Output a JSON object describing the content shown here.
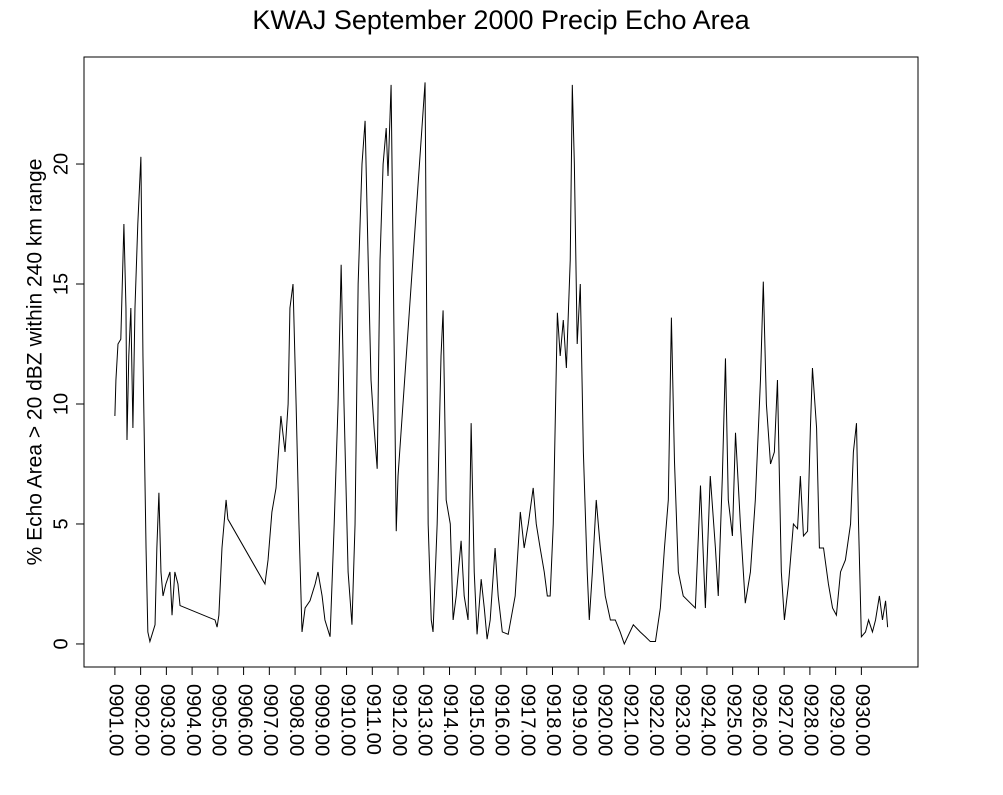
{
  "chart_data": {
    "type": "line",
    "title": "KWAJ September 2000 Precip Echo Area",
    "y_label": "% Echo Area > 20 dBZ within 240 km range",
    "xlim": [
      -0.2,
      32.2
    ],
    "ylim": [
      -0.96,
      24.46
    ],
    "yticks": [
      0,
      5,
      10,
      15,
      20
    ],
    "xticks": [
      {
        "value": 1,
        "label": "0901.00"
      },
      {
        "value": 2,
        "label": "0902.00"
      },
      {
        "value": 3,
        "label": "0903.00"
      },
      {
        "value": 4,
        "label": "0904.00"
      },
      {
        "value": 5,
        "label": "0905.00"
      },
      {
        "value": 6,
        "label": "0906.00"
      },
      {
        "value": 7,
        "label": "0907.00"
      },
      {
        "value": 8,
        "label": "0908.00"
      },
      {
        "value": 9,
        "label": "0909.00"
      },
      {
        "value": 10,
        "label": "0910.00"
      },
      {
        "value": 11,
        "label": "0911.00"
      },
      {
        "value": 12,
        "label": "0912.00"
      },
      {
        "value": 13,
        "label": "0913.00"
      },
      {
        "value": 14,
        "label": "0914.00"
      },
      {
        "value": 15,
        "label": "0915.00"
      },
      {
        "value": 16,
        "label": "0916.00"
      },
      {
        "value": 17,
        "label": "0917.00"
      },
      {
        "value": 18,
        "label": "0918.00"
      },
      {
        "value": 19,
        "label": "0919.00"
      },
      {
        "value": 20,
        "label": "0920.00"
      },
      {
        "value": 21,
        "label": "0921.00"
      },
      {
        "value": 22,
        "label": "0922.00"
      },
      {
        "value": 23,
        "label": "0923.00"
      },
      {
        "value": 24,
        "label": "0924.00"
      },
      {
        "value": 25,
        "label": "0925.00"
      },
      {
        "value": 26,
        "label": "0926.00"
      },
      {
        "value": 27,
        "label": "0927.00"
      },
      {
        "value": 28,
        "label": "0928.00"
      },
      {
        "value": 29,
        "label": "0929.00"
      },
      {
        "value": 30,
        "label": "0930.00"
      }
    ],
    "x": [
      1.0,
      1.04,
      1.12,
      1.23,
      1.35,
      1.43,
      1.47,
      1.54,
      1.62,
      1.7,
      1.78,
      1.89,
      2.01,
      2.09,
      2.21,
      2.28,
      2.36,
      2.56,
      2.63,
      2.71,
      2.79,
      2.87,
      2.98,
      3.14,
      3.22,
      3.33,
      3.45,
      3.53,
      4.89,
      4.97,
      5.04,
      5.16,
      5.32,
      5.39,
      6.83,
      6.95,
      7.1,
      7.26,
      7.45,
      7.61,
      7.73,
      7.8,
      7.92,
      8.04,
      8.15,
      8.27,
      8.39,
      8.58,
      8.78,
      8.89,
      9.05,
      9.16,
      9.36,
      9.52,
      9.67,
      9.79,
      9.9,
      10.06,
      10.21,
      10.33,
      10.45,
      10.6,
      10.72,
      10.84,
      10.95,
      11.07,
      11.19,
      11.3,
      11.42,
      11.54,
      11.61,
      11.73,
      11.81,
      11.93,
      12.0,
      13.05,
      13.17,
      13.29,
      13.36,
      13.52,
      13.67,
      13.75,
      13.87,
      14.03,
      14.14,
      14.26,
      14.45,
      14.57,
      14.72,
      14.84,
      14.96,
      15.07,
      15.23,
      15.35,
      15.46,
      15.58,
      15.77,
      15.89,
      16.05,
      16.28,
      16.55,
      16.75,
      16.9,
      17.06,
      17.25,
      17.37,
      17.52,
      17.68,
      17.8,
      17.91,
      18.03,
      18.19,
      18.3,
      18.42,
      18.54,
      18.69,
      18.77,
      18.85,
      18.96,
      19.08,
      19.2,
      19.35,
      19.43,
      19.55,
      19.7,
      19.86,
      20.05,
      20.25,
      20.44,
      20.63,
      20.79,
      21.14,
      21.41,
      21.61,
      21.8,
      22.0,
      22.19,
      22.35,
      22.5,
      22.62,
      22.74,
      22.89,
      23.08,
      23.36,
      23.55,
      23.75,
      23.94,
      24.13,
      24.33,
      24.44,
      24.6,
      24.72,
      24.83,
      24.99,
      25.11,
      25.3,
      25.49,
      25.69,
      25.88,
      26.08,
      26.19,
      26.31,
      26.47,
      26.62,
      26.74,
      26.89,
      27.01,
      27.17,
      27.36,
      27.52,
      27.63,
      27.75,
      27.91,
      28.02,
      28.1,
      28.26,
      28.37,
      28.53,
      28.72,
      28.88,
      29.03,
      29.19,
      29.38,
      29.58,
      29.69,
      29.81,
      29.89,
      30.0,
      30.16,
      30.28,
      30.43,
      30.55,
      30.7,
      30.82,
      30.94,
      31.02
    ],
    "values": [
      9.5,
      11,
      12.5,
      12.7,
      17.5,
      14,
      8.5,
      12,
      14,
      9,
      14,
      17.5,
      20.3,
      12,
      4,
      0.5,
      0.1,
      0.8,
      4,
      6.3,
      3,
      2,
      2.5,
      3,
      1.2,
      3,
      2.5,
      1.6,
      1,
      0.7,
      1.2,
      4,
      6,
      5.2,
      2.5,
      3.5,
      5.5,
      6.5,
      9.5,
      8,
      10,
      14,
      15,
      10,
      5,
      0.5,
      1.5,
      1.8,
      2.5,
      3,
      2,
      1,
      0.3,
      5,
      10,
      15.8,
      10,
      3,
      0.8,
      5,
      15,
      20,
      21.8,
      16,
      11,
      9,
      7.3,
      16,
      20,
      21.5,
      19.5,
      23.3,
      16,
      4.7,
      7,
      23.4,
      5,
      1,
      0.5,
      5,
      12,
      13.9,
      6,
      5,
      1,
      2,
      4.3,
      2,
      1,
      9.2,
      3,
      0.4,
      2.7,
      1.5,
      0.2,
      1,
      4,
      2,
      0.5,
      0.4,
      2,
      5.5,
      4,
      5,
      6.5,
      5,
      4,
      3,
      2,
      2,
      5,
      13.8,
      12,
      13.5,
      11.5,
      16,
      23.3,
      20,
      12.5,
      15,
      8,
      3,
      1,
      3,
      6,
      4,
      2,
      1,
      1,
      0.5,
      0,
      0.8,
      0.5,
      0.3,
      0.1,
      0.1,
      1.5,
      4,
      6,
      13.6,
      7.6,
      3,
      2,
      1.7,
      1.5,
      6.6,
      1.5,
      7,
      4,
      2,
      7,
      11.9,
      6,
      4.5,
      8.8,
      5,
      1.7,
      3,
      6,
      11,
      15.1,
      10,
      7.5,
      8,
      11,
      3,
      1,
      2.5,
      5,
      4.8,
      7,
      4.5,
      4.7,
      9,
      11.5,
      9,
      4,
      4,
      2.5,
      1.5,
      1.2,
      3,
      3.5,
      5,
      8,
      9.2,
      5,
      0.3,
      0.5,
      1,
      0.5,
      1,
      2,
      1,
      1.8,
      0.7
    ],
    "color": "#000000"
  }
}
